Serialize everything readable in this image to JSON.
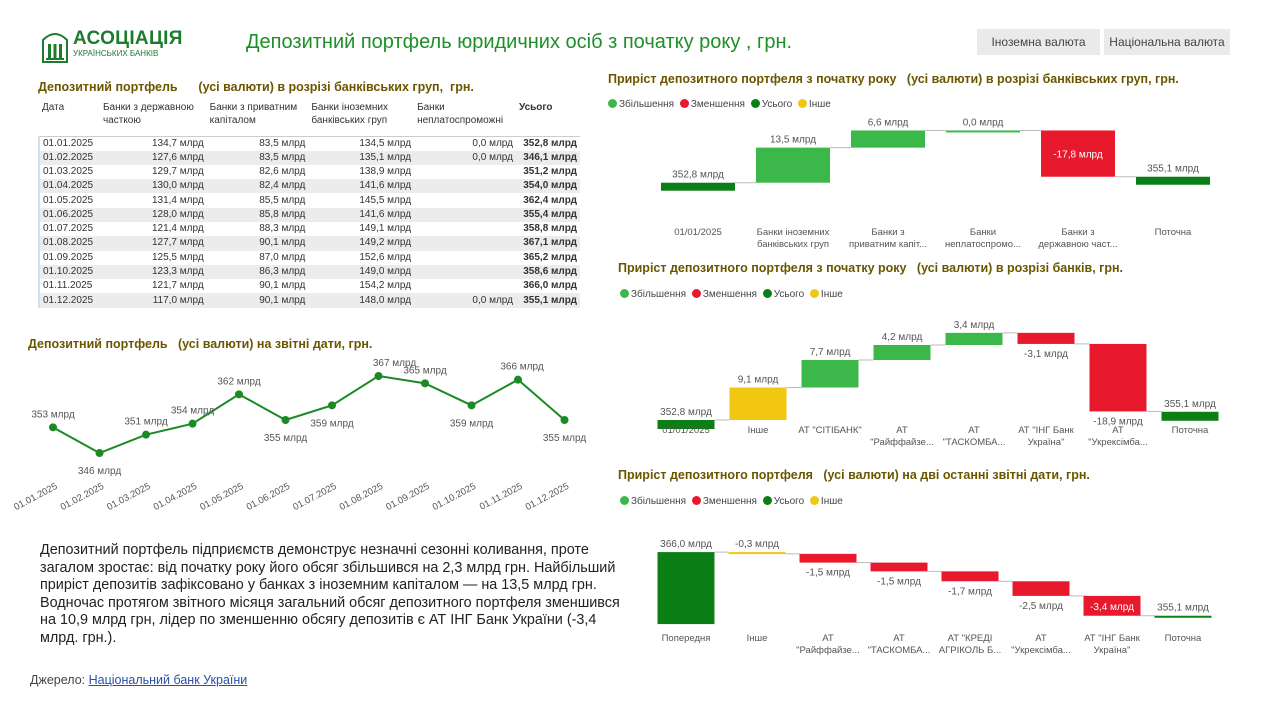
{
  "header": {
    "logo_main": "АСОЦІАЦІЯ",
    "logo_sub": "УКРАЇНСЬКИХ БАНКІВ",
    "title": "Депозитний портфель  юридичних  осіб з початку року , грн.",
    "tabs": [
      "Іноземна валюта",
      "Національна валюта"
    ]
  },
  "colors": {
    "increase": "#3cb84a",
    "decrease": "#e8192c",
    "total": "#0b7f16",
    "other": "#f2c712",
    "title": "#6b5600",
    "accent": "#1f8f2a"
  },
  "table": {
    "title": "Депозитний портфель      (усі валюти) в розрізі банківських груп,  грн.",
    "columns": [
      "Дата",
      "Банки з державною часткою",
      "Банки з приватним капіталом",
      "Банки іноземних банківських груп",
      "Банки неплатоспроможні",
      "Усього"
    ],
    "rows": [
      [
        "01.01.2025",
        "134,7 млрд",
        "83,5 млрд",
        "134,5 млрд",
        "0,0 млрд",
        "352,8 млрд"
      ],
      [
        "01.02.2025",
        "127,6 млрд",
        "83,5 млрд",
        "135,1 млрд",
        "0,0 млрд",
        "346,1 млрд"
      ],
      [
        "01.03.2025",
        "129,7 млрд",
        "82,6 млрд",
        "138,9 млрд",
        "",
        "351,2 млрд"
      ],
      [
        "01.04.2025",
        "130,0 млрд",
        "82,4 млрд",
        "141,6 млрд",
        "",
        "354,0 млрд"
      ],
      [
        "01.05.2025",
        "131,4 млрд",
        "85,5 млрд",
        "145,5 млрд",
        "",
        "362,4 млрд"
      ],
      [
        "01.06.2025",
        "128,0 млрд",
        "85,8 млрд",
        "141,6 млрд",
        "",
        "355,4 млрд"
      ],
      [
        "01.07.2025",
        "121,4 млрд",
        "88,3 млрд",
        "149,1 млрд",
        "",
        "358,8 млрд"
      ],
      [
        "01.08.2025",
        "127,7 млрд",
        "90,1 млрд",
        "149,2 млрд",
        "",
        "367,1 млрд"
      ],
      [
        "01.09.2025",
        "125,5 млрд",
        "87,0 млрд",
        "152,6 млрд",
        "",
        "365,2 млрд"
      ],
      [
        "01.10.2025",
        "123,3 млрд",
        "86,3 млрд",
        "149,0 млрд",
        "",
        "358,6 млрд"
      ],
      [
        "01.11.2025",
        "121,7 млрд",
        "90,1 млрд",
        "154,2 млрд",
        "",
        "366,0 млрд"
      ],
      [
        "01.12.2025",
        "117,0 млрд",
        "90,1 млрд",
        "148,0 млрд",
        "0,0 млрд",
        "355,1 млрд"
      ]
    ]
  },
  "legend_labels": [
    "Збільшення",
    "Зменшення",
    "Усього",
    "Інше"
  ],
  "chart_data": [
    {
      "type": "line",
      "title": "Депозитний портфель   (усі валюти) на звітні дати, грн.",
      "categories": [
        "01.01.2025",
        "01.02.2025",
        "01.03.2025",
        "01.04.2025",
        "01.05.2025",
        "01.06.2025",
        "01.07.2025",
        "01.08.2025",
        "01.09.2025",
        "01.10.2025",
        "01.11.2025",
        "01.12.2025"
      ],
      "values": [
        353,
        346,
        351,
        354,
        362,
        355,
        359,
        367,
        365,
        359,
        366,
        355
      ],
      "labels": [
        "353 млрд",
        "346 млрд",
        "351 млрд",
        "354 млрд",
        "362 млрд",
        "355 млрд",
        "359 млрд",
        "367 млрд",
        "365 млрд",
        "359 млрд",
        "366 млрд",
        "355 млрд"
      ],
      "ylim": [
        340,
        370
      ]
    },
    {
      "type": "waterfall",
      "title": "Приріст депозитного портфеля з початку року   (усі валюти) в розрізі банківських груп, грн.",
      "ylim": [
        330,
        380
      ],
      "bars": [
        {
          "label": "01/01/2025",
          "kind": "total",
          "value": 352.8,
          "text": "352,8 млрд"
        },
        {
          "label": "Банки іноземних банківських груп",
          "kind": "increase",
          "value": 13.5,
          "text": "13,5 млрд"
        },
        {
          "label": "Банки з приватним капіт...",
          "kind": "increase",
          "value": 6.6,
          "text": "6,6 млрд"
        },
        {
          "label": "Банки неплатоспромо...",
          "kind": "increase",
          "value": 0.0,
          "text": "0,0 млрд"
        },
        {
          "label": "Банки з державною част...",
          "kind": "decrease",
          "value": -17.8,
          "text": "-17,8 млрд"
        },
        {
          "label": "Поточна",
          "kind": "total",
          "value": 355.1,
          "text": "355,1 млрд"
        }
      ]
    },
    {
      "type": "waterfall",
      "title": "Приріст депозитного портфеля з початку року   (усі валюти) в розрізі банків, грн.",
      "ylim": [
        343,
        385
      ],
      "bars": [
        {
          "label": "01/01/2025",
          "kind": "total",
          "value": 352.8,
          "text": "352,8 млрд"
        },
        {
          "label": "Інше",
          "kind": "other",
          "value": 9.1,
          "text": "9,1 млрд"
        },
        {
          "label": "АТ \"СІТІБАНК\"",
          "kind": "increase",
          "value": 7.7,
          "text": "7,7 млрд"
        },
        {
          "label": "АТ \"Райффайзе...",
          "kind": "increase",
          "value": 4.2,
          "text": "4,2 млрд"
        },
        {
          "label": "АТ \"ТАСКОМБА...",
          "kind": "increase",
          "value": 3.4,
          "text": "3,4 млрд"
        },
        {
          "label": "АТ \"ІНГ Банк Україна\"",
          "kind": "decrease",
          "value": -3.1,
          "text": "-3,1 млрд"
        },
        {
          "label": "АТ \"Укрексімба...",
          "kind": "decrease",
          "value": -18.9,
          "text": "-18,9 млрд"
        },
        {
          "label": "Поточна",
          "kind": "total",
          "value": 355.1,
          "text": "355,1 млрд"
        }
      ]
    },
    {
      "type": "waterfall",
      "title": "Приріст депозитного портфеля   (усі валюти) на дві останні звітні дати, грн.",
      "ylim": [
        353,
        366.7
      ],
      "bars": [
        {
          "label": "Попередня",
          "kind": "total",
          "value": 366.0,
          "text": "366,0 млрд"
        },
        {
          "label": "Інше",
          "kind": "other",
          "value": -0.3,
          "text": "-0,3 млрд"
        },
        {
          "label": "АТ \"Райффайзе...",
          "kind": "decrease",
          "value": -1.5,
          "text": "-1,5 млрд"
        },
        {
          "label": "АТ \"ТАСКОМБА...",
          "kind": "decrease",
          "value": -1.5,
          "text": "-1,5 млрд"
        },
        {
          "label": "АТ \"КРЕДІ АГРІКОЛЬ Б...",
          "kind": "decrease",
          "value": -1.7,
          "text": "-1,7 млрд"
        },
        {
          "label": "АТ \"Укрексімба...",
          "kind": "decrease",
          "value": -2.5,
          "text": "-2,5 млрд"
        },
        {
          "label": "АТ \"ІНГ Банк Україна\"",
          "kind": "decrease",
          "value": -3.4,
          "text": "-3,4 млрд"
        },
        {
          "label": "Поточна",
          "kind": "total",
          "value": 355.1,
          "text": "355,1 млрд"
        }
      ]
    }
  ],
  "summary": "Депозитний портфель підприємств демонструє незначні сезонні коливання, проте загалом зростає: від початку року його обсяг збільшився на 2,3 млрд грн. Найбільший приріст депозитів зафіксовано у банках з іноземним капіталом — на 13,5 млрд грн. Водночас протягом звітного місяця загальний обсяг депозитного портфеля зменшився на 10,9 млрд грн, лідер по зменшенню обсягу депозитів  є АТ ІНГ Банк України (-3,4 млрд. грн.).",
  "source": {
    "prefix": "Джерело: ",
    "link": "Національний банк України"
  }
}
